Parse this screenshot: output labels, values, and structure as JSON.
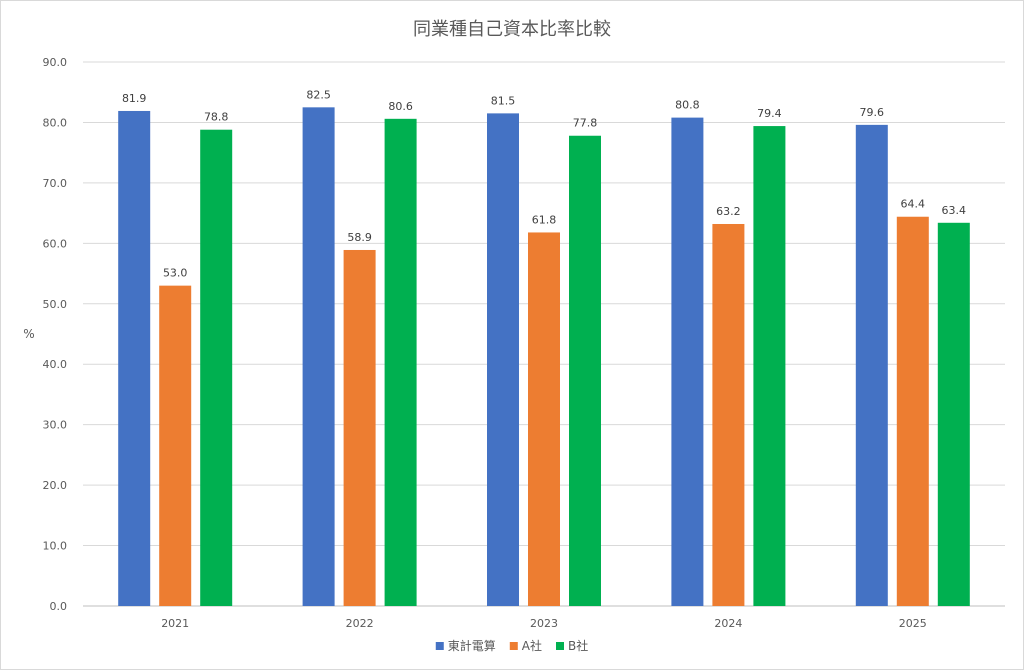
{
  "chart_data": {
    "type": "bar",
    "title": "同業種自己資本比率比較",
    "xlabel": "",
    "ylabel": "%",
    "ylim": [
      0,
      90
    ],
    "ytick_step": 10,
    "ytick_decimals": 1,
    "grid": true,
    "legend": "bottom",
    "categories": [
      "2021",
      "2022",
      "2023",
      "2024",
      "2025"
    ],
    "series": [
      {
        "name": "東計電算",
        "color": "#4472c4",
        "values": [
          81.9,
          82.5,
          81.5,
          80.8,
          79.6
        ]
      },
      {
        "name": "A社",
        "color": "#ed7d31",
        "values": [
          53.0,
          58.9,
          61.8,
          63.2,
          64.4
        ]
      },
      {
        "name": "B社",
        "color": "#00b050",
        "values": [
          78.8,
          80.6,
          77.8,
          79.4,
          63.4
        ]
      }
    ]
  }
}
